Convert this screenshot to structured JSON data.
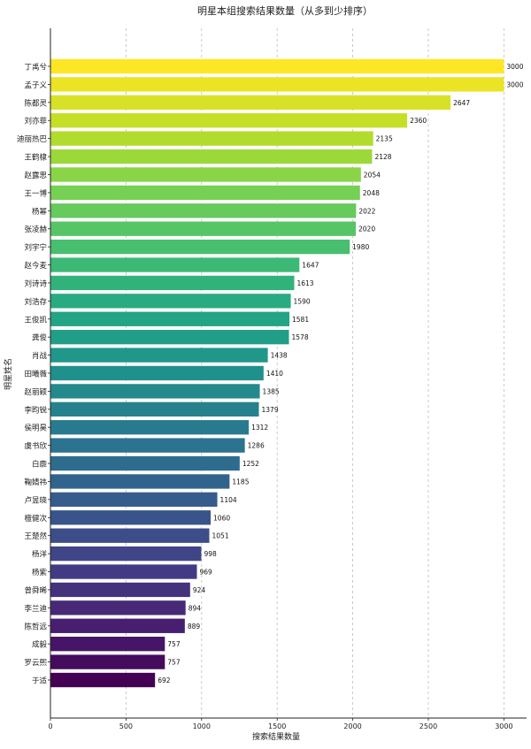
{
  "chart_data": {
    "type": "bar",
    "orientation": "horizontal",
    "title": "明星本组搜索结果数量（从多到少排序）",
    "xlabel": "搜索结果数量",
    "ylabel": "明星姓名",
    "xlim": [
      0,
      3150
    ],
    "xticks": [
      0,
      500,
      1000,
      1500,
      2000,
      2500,
      3000
    ],
    "grid": "vertical dashed",
    "legend": "none",
    "colormap": "viridis (reversed: top yellow, bottom purple)",
    "categories": [
      "丁禹兮",
      "孟子义",
      "陈都灵",
      "刘亦菲",
      "迪丽热巴",
      "王鹤棣",
      "赵露思",
      "王一博",
      "杨幂",
      "张凌赫",
      "刘宇宁",
      "赵今麦",
      "刘诗诗",
      "刘浩存",
      "王俊凯",
      "龚俊",
      "肖战",
      "田曦薇",
      "赵丽颖",
      "李昀锐",
      "侯明昊",
      "虞书欣",
      "白鹿",
      "鞠婧祎",
      "卢昱晓",
      "檀健次",
      "王楚然",
      "杨洋",
      "杨紫",
      "曾舜晞",
      "李兰迪",
      "陈哲远",
      "成毅",
      "罗云熙",
      "于适"
    ],
    "values": [
      3000,
      3000,
      2647,
      2360,
      2135,
      2128,
      2054,
      2048,
      2022,
      2020,
      1980,
      1647,
      1613,
      1590,
      1581,
      1578,
      1438,
      1410,
      1385,
      1379,
      1312,
      1286,
      1252,
      1185,
      1104,
      1060,
      1051,
      998,
      969,
      924,
      894,
      889,
      757,
      757,
      692
    ]
  }
}
